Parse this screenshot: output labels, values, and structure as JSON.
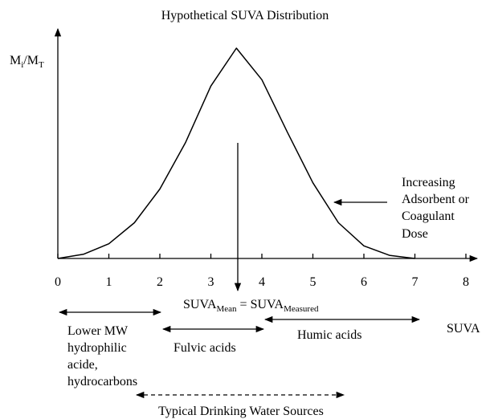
{
  "chart_data": {
    "type": "line",
    "title": "Hypothetical SUVA Distribution",
    "y_label": {
      "main": "M",
      "sub1": "i",
      "mid": "/M",
      "sub2": "T"
    },
    "x_label": "SUVA",
    "x": [
      0,
      0.5,
      1,
      1.5,
      2,
      2.5,
      3,
      3.5,
      4,
      4.5,
      5,
      5.5,
      6,
      6.5,
      7
    ],
    "values": [
      0,
      0.02,
      0.07,
      0.17,
      0.33,
      0.55,
      0.82,
      1,
      0.85,
      0.6,
      0.36,
      0.17,
      0.06,
      0.015,
      0
    ],
    "color": "#000000",
    "xlim": [
      0,
      8
    ],
    "ylim": [
      0,
      1
    ],
    "xticks": [
      0,
      1,
      2,
      3,
      4,
      5,
      6,
      7,
      8
    ],
    "annotations": {
      "mean": {
        "a": "SUVA",
        "a_sub": "Mean",
        "b": " = SUVA",
        "b_sub": "Measured"
      },
      "dose": [
        "Increasing",
        "Adsorbent or",
        "Coagulant",
        "Dose"
      ],
      "lower_mw": [
        "Lower MW",
        "hydrophilic",
        "acide,",
        "hydrocarbons"
      ],
      "fulvic": "Fulvic acids",
      "humic": "Humic acids",
      "drinking": "Typical Drinking Water Sources"
    }
  }
}
